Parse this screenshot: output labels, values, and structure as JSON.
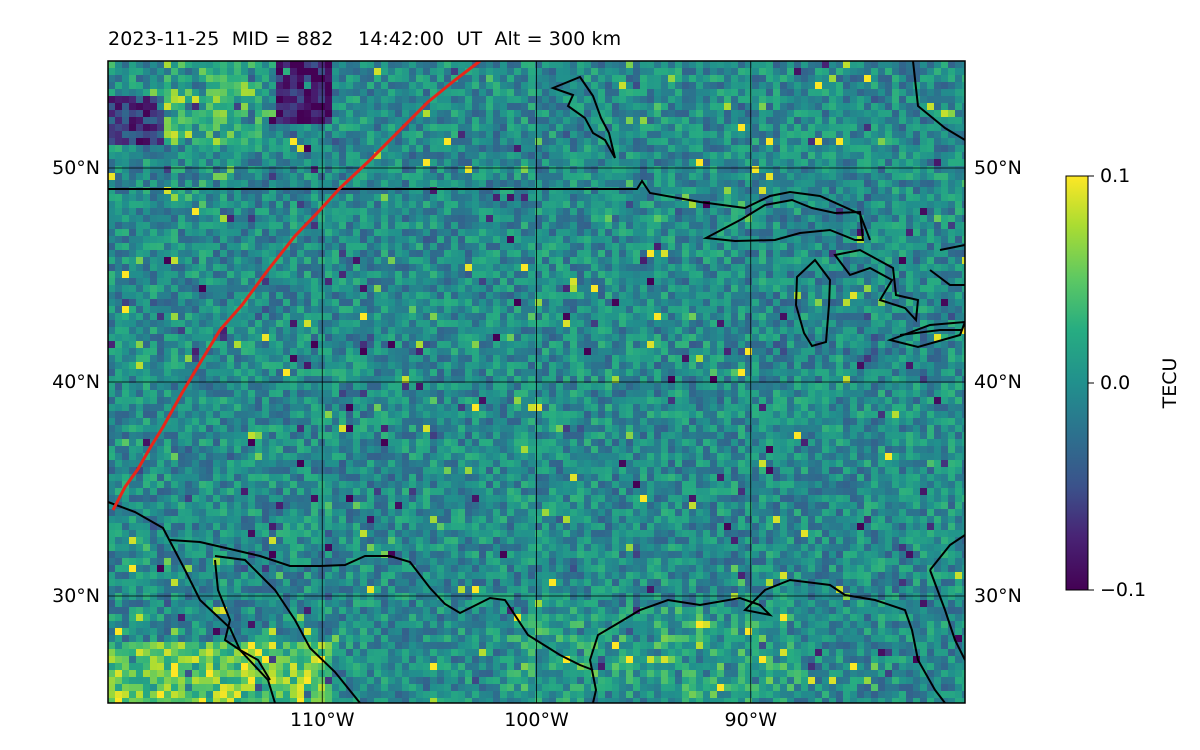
{
  "title": "2023-11-25  MID = 882    14:42:00  UT  Alt = 300 km",
  "map": {
    "lon_range": [
      -120,
      -80
    ],
    "lat_range": [
      25,
      55
    ],
    "gridlines": "on",
    "lat_ticks": [
      {
        "value": 50,
        "label": "50°N"
      },
      {
        "value": 40,
        "label": "40°N"
      },
      {
        "value": 30,
        "label": "30°N"
      }
    ],
    "lon_ticks": [
      {
        "value": -110,
        "label": "110°W"
      },
      {
        "value": -100,
        "label": "100°W"
      },
      {
        "value": -90,
        "label": "90°W"
      }
    ],
    "path_color": "#e8261a"
  },
  "colorbar": {
    "label": "TECU",
    "range": [
      -0.1,
      0.1
    ],
    "colormap": "viridis",
    "ticks": [
      {
        "value": 0.1,
        "label": "0.1"
      },
      {
        "value": 0.0,
        "label": "0.0"
      },
      {
        "value": -0.1,
        "label": "−0.1"
      }
    ]
  }
}
